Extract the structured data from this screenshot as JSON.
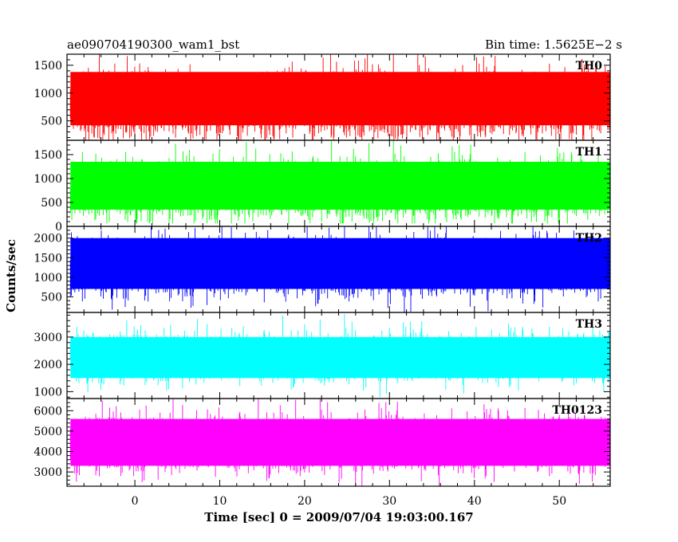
{
  "chart_data": {
    "type": "line",
    "title_left": "ae090704190300_wam1_bst",
    "title_right": "Bin time: 1.5625E−2 s",
    "xlabel": "Time [sec] 0 = 2009/07/04 19:03:00.167",
    "ylabel": "Counts/sec",
    "xlim": [
      -8,
      56
    ],
    "x_ticks": [
      0,
      10,
      20,
      30,
      40,
      50
    ],
    "panels": [
      {
        "name": "TH0",
        "color": "#ff0000",
        "ylim": [
          150,
          1700
        ],
        "y_ticks": [
          500,
          1000,
          1500
        ],
        "baseline": 750,
        "spread": 300,
        "floor": 160,
        "ceiling": 1700,
        "min_level": 420,
        "max_level": 1380
      },
      {
        "name": "TH1",
        "color": "#00ff00",
        "ylim": [
          0,
          1800
        ],
        "y_ticks": [
          0,
          500,
          1000,
          1500
        ],
        "baseline": 720,
        "spread": 320,
        "floor": 60,
        "ceiling": 1800,
        "min_level": 350,
        "max_level": 1350
      },
      {
        "name": "TH2",
        "color": "#0000ff",
        "ylim": [
          100,
          2300
        ],
        "y_ticks": [
          500,
          1000,
          1500,
          2000
        ],
        "baseline": 1200,
        "spread": 380,
        "floor": 100,
        "ceiling": 2300,
        "min_level": 700,
        "max_level": 2000
      },
      {
        "name": "TH3",
        "color": "#00ffff",
        "ylim": [
          750,
          3900
        ],
        "y_ticks": [
          1000,
          2000,
          3000
        ],
        "baseline": 2200,
        "spread": 450,
        "floor": 800,
        "ceiling": 3900,
        "min_level": 1500,
        "max_level": 3000
      },
      {
        "name": "TH0123",
        "color": "#ff00ff",
        "ylim": [
          2300,
          6600
        ],
        "y_ticks": [
          3000,
          4000,
          5000,
          6000
        ],
        "baseline": 4300,
        "spread": 700,
        "floor": 2300,
        "ceiling": 6600,
        "min_level": 3300,
        "max_level": 5600
      }
    ]
  }
}
